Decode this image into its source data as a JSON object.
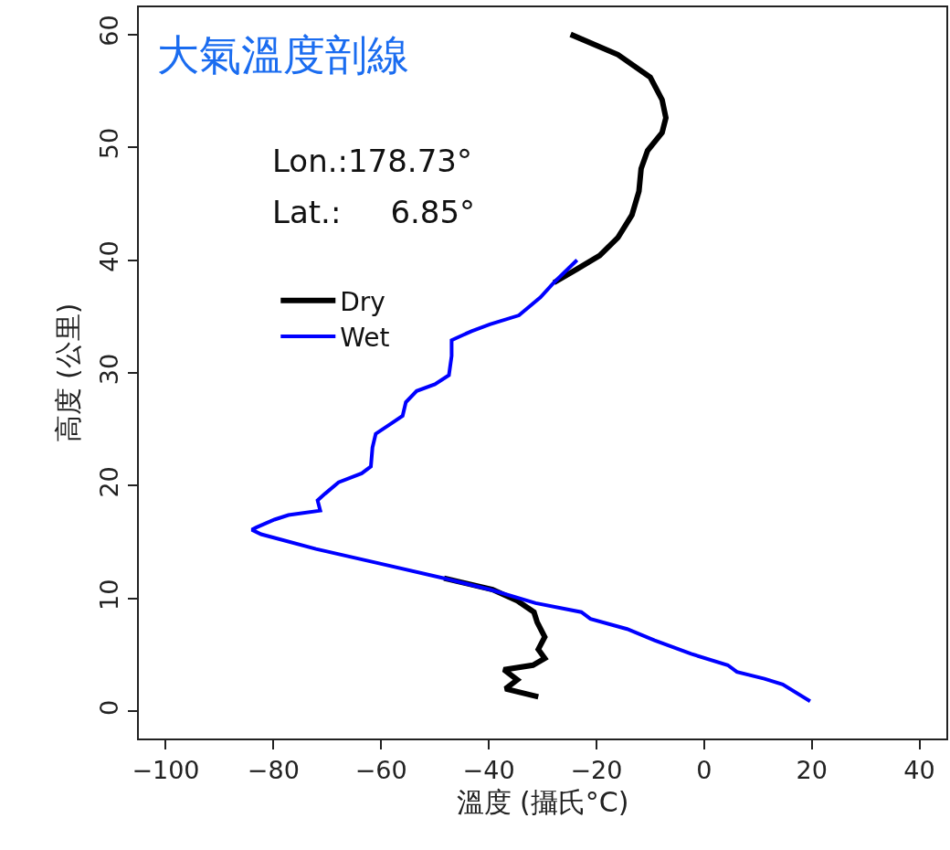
{
  "chart_data": {
    "type": "line",
    "title": "大氣溫度剖線",
    "xlabel": "溫度 (攝氏°C)",
    "ylabel": "高度 (公里)",
    "annotations": [
      "Lon.:178.73°",
      "Lat.:     6.85°"
    ],
    "xlim": [
      -105,
      45
    ],
    "xticks": [
      -100,
      -80,
      -60,
      -40,
      -20,
      0,
      20,
      40
    ],
    "ylim": [
      -2.4,
      62.4
    ],
    "yticks": [
      0,
      10,
      20,
      30,
      40,
      50,
      60
    ],
    "legend": "top left",
    "marker": "none",
    "line_style": "solid",
    "series": [
      {
        "name": "Dry",
        "color": "#000000",
        "x": [
          -24.8,
          -16,
          -10,
          -7.8,
          -7.1,
          -7.8,
          -10.5,
          -11.7,
          -12.1,
          -13.4,
          -16,
          -19.4,
          -23.6,
          -27.9,
          null,
          null,
          null,
          null,
          null,
          null,
          null,
          null,
          null,
          null,
          null,
          null,
          null,
          null,
          null,
          null,
          null,
          null,
          null,
          null,
          null,
          null,
          null,
          null,
          null,
          null,
          null,
          -48.3,
          -39.3,
          -34.7,
          -31.6,
          -31,
          -29.6,
          -30.8,
          -29.6,
          -31.8,
          -37.2,
          -34.7,
          -36.9,
          -30.8
        ],
        "values": [
          60,
          58.2,
          56.2,
          54.2,
          52.6,
          51.3,
          49.7,
          48.1,
          46.1,
          44,
          42,
          40.4,
          39.2,
          38,
          null,
          null,
          null,
          null,
          null,
          null,
          null,
          null,
          null,
          null,
          null,
          null,
          null,
          null,
          null,
          null,
          null,
          null,
          null,
          null,
          null,
          null,
          null,
          null,
          null,
          null,
          null,
          11.8,
          10.8,
          9.8,
          8.8,
          7.9,
          6.6,
          5.5,
          4.7,
          4.1,
          3.7,
          2.8,
          2,
          1.3
        ]
      },
      {
        "name": "Wet",
        "color": "#0000ff",
        "x": [
          -23.6,
          -27.9,
          -30.4,
          -34.4,
          -39.8,
          -43.2,
          -46.9,
          -46.9,
          -47.4,
          -50,
          -53.4,
          -55.4,
          -56,
          -58.5,
          -61,
          -61.6,
          -61.9,
          -63.6,
          -67.9,
          -70.4,
          -71.8,
          -71.3,
          -77.2,
          -79.8,
          -83.2,
          -84,
          -82.3,
          -72.1,
          -60.2,
          -48.3,
          -39.8,
          -31.3,
          -22.8,
          -21.1,
          -14.3,
          -9.2,
          -2.4,
          4.4,
          6.1,
          11.2,
          14.6,
          19.7
        ],
        "values": [
          40,
          38,
          36.7,
          35.1,
          34.3,
          33.7,
          32.9,
          31.5,
          29.8,
          29,
          28.4,
          27.4,
          26.2,
          25.4,
          24.6,
          23.4,
          21.7,
          21.1,
          20.3,
          19.3,
          18.7,
          17.8,
          17.4,
          17,
          16.3,
          16.1,
          15.7,
          14.4,
          13.1,
          11.8,
          10.8,
          9.6,
          8.8,
          8.2,
          7.3,
          6.3,
          5.1,
          4.1,
          3.5,
          2.9,
          2.4,
          0.9
        ]
      }
    ]
  }
}
